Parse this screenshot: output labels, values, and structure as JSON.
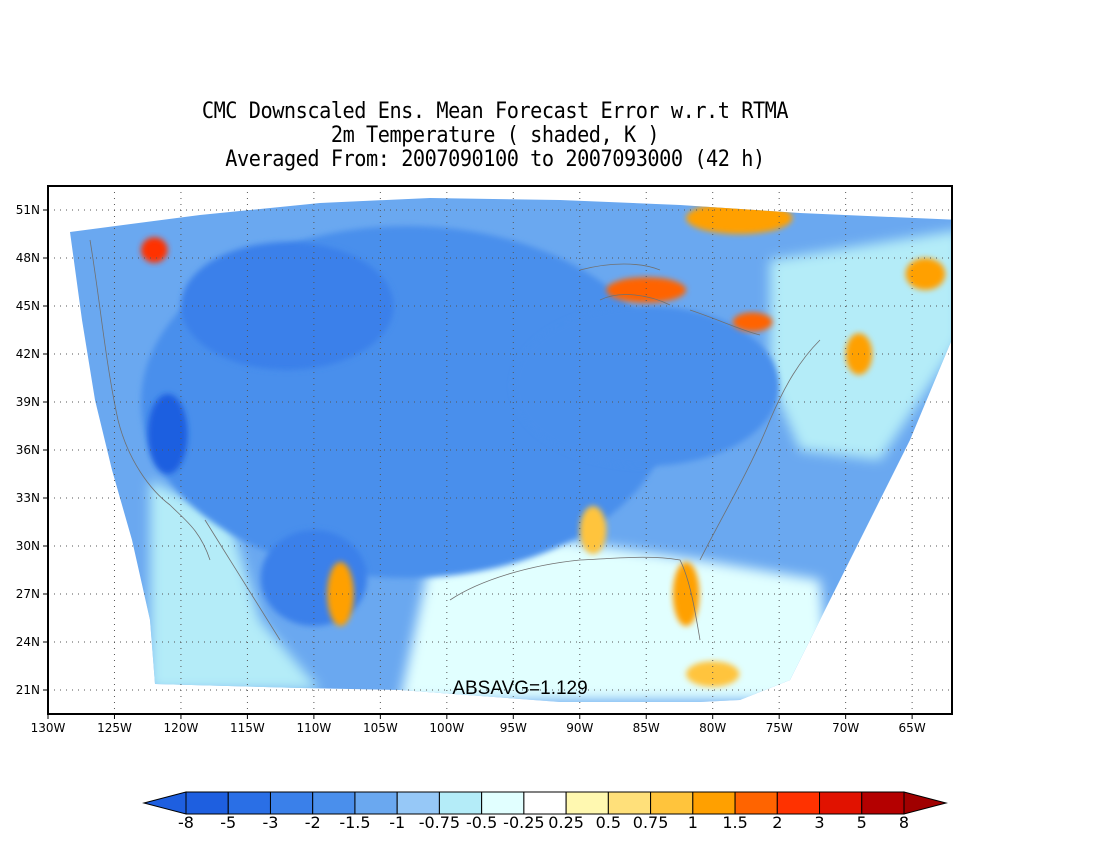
{
  "title": {
    "line1": "CMC Downscaled Ens. Mean Forecast Error w.r.t RTMA",
    "line2": "2m Temperature ( shaded, K )",
    "line3": "Averaged From: 2007090100 to 2007093000 (42 h)"
  },
  "map": {
    "lon_range": [
      -130,
      -62
    ],
    "lat_range": [
      19.5,
      52.5
    ],
    "x_tick_labels": [
      "130W",
      "125W",
      "120W",
      "115W",
      "110W",
      "105W",
      "100W",
      "95W",
      "90W",
      "85W",
      "80W",
      "75W",
      "70W",
      "65W"
    ],
    "x_tick_values": [
      -130,
      -125,
      -120,
      -115,
      -110,
      -105,
      -100,
      -95,
      -90,
      -85,
      -80,
      -75,
      -70,
      -65
    ],
    "y_tick_labels": [
      "21N",
      "24N",
      "27N",
      "30N",
      "33N",
      "36N",
      "39N",
      "42N",
      "45N",
      "48N",
      "51N"
    ],
    "y_tick_values": [
      21,
      24,
      27,
      30,
      33,
      36,
      39,
      42,
      45,
      48,
      51
    ],
    "grid": "dotted",
    "annotation": "ABSAVG=1.129"
  },
  "colorbar": {
    "labels": [
      "-8",
      "-5",
      "-3",
      "-2",
      "-1.5",
      "-1",
      "-0.75",
      "-0.5",
      "-0.25",
      "0.25",
      "0.5",
      "0.75",
      "1",
      "1.5",
      "2",
      "3",
      "5",
      "8"
    ],
    "colors": [
      "#1e5fe0",
      "#2a6fe6",
      "#3a80ea",
      "#4a8fec",
      "#6aa8f0",
      "#96c8f7",
      "#b4ecf8",
      "#e1ffff",
      "#ffffff",
      "#fff8b0",
      "#ffe07a",
      "#ffc43c",
      "#ffa000",
      "#ff6400",
      "#ff3200",
      "#e11200",
      "#b40000"
    ],
    "low_end_color": "#1e5fe0",
    "high_end_color": "#a00000"
  },
  "field_features": [
    {
      "kind": "region",
      "lon": -103,
      "lat": 39,
      "rx": 20,
      "ry": 11,
      "color": "#4a8fec"
    },
    {
      "kind": "region",
      "lon": -85,
      "lat": 40,
      "rx": 10,
      "ry": 5,
      "color": "#4a8fec"
    },
    {
      "kind": "region",
      "lon": -112,
      "lat": 45,
      "rx": 8,
      "ry": 4,
      "color": "#3a80ea"
    },
    {
      "kind": "region",
      "lon": -110,
      "lat": 28,
      "rx": 4,
      "ry": 3,
      "color": "#3a80ea"
    },
    {
      "kind": "region",
      "lon": -121,
      "lat": 37,
      "rx": 1.5,
      "ry": 2.5,
      "color": "#1e5fe0"
    },
    {
      "kind": "warm",
      "lon": -85,
      "lat": 46,
      "rx": 3,
      "ry": 0.8,
      "color": "#ff6400"
    },
    {
      "kind": "warm",
      "lon": -78,
      "lat": 50.5,
      "rx": 4,
      "ry": 1,
      "color": "#ffa000"
    },
    {
      "kind": "warm",
      "lon": -69,
      "lat": 42,
      "rx": 1,
      "ry": 1.3,
      "color": "#ffa000"
    },
    {
      "kind": "warm",
      "lon": -82,
      "lat": 27,
      "rx": 1,
      "ry": 2,
      "color": "#ffa000"
    },
    {
      "kind": "warm",
      "lon": -108,
      "lat": 27,
      "rx": 1,
      "ry": 2,
      "color": "#ffa000"
    },
    {
      "kind": "warm",
      "lon": -122,
      "lat": 48.5,
      "rx": 1,
      "ry": 0.8,
      "color": "#ff3200"
    },
    {
      "kind": "warm",
      "lon": -80,
      "lat": 22,
      "rx": 2,
      "ry": 0.8,
      "color": "#ffc43c"
    },
    {
      "kind": "warm",
      "lon": -64,
      "lat": 47,
      "rx": 1.5,
      "ry": 1,
      "color": "#ffa000"
    },
    {
      "kind": "warm",
      "lon": -89,
      "lat": 31,
      "rx": 1,
      "ry": 1.5,
      "color": "#ffc43c"
    },
    {
      "kind": "warm",
      "lon": -77,
      "lat": 44,
      "rx": 1.5,
      "ry": 0.6,
      "color": "#ff6400"
    }
  ]
}
